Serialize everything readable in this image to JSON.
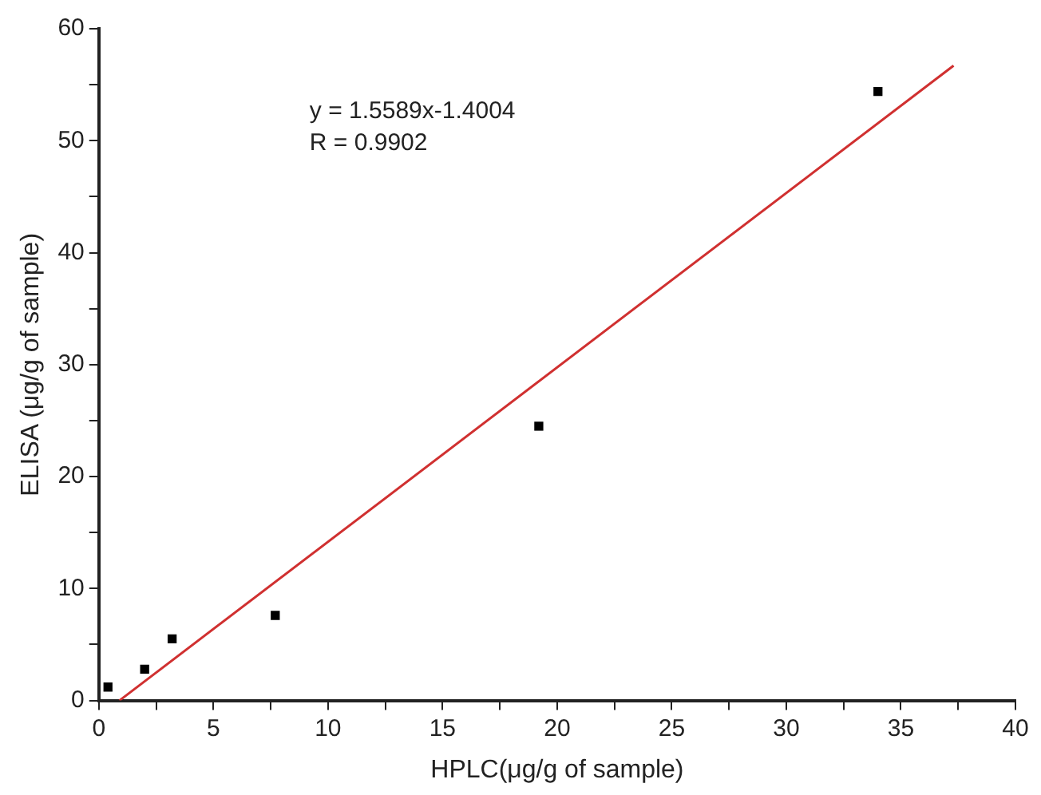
{
  "chart_data": {
    "type": "scatter",
    "xlabel": "HPLC(μg/g of sample)",
    "ylabel": "ELISA (μg/g of sample)",
    "xlim": [
      0,
      40
    ],
    "ylim": [
      0,
      60
    ],
    "xticks": [
      0,
      {
        "value": 2.5,
        "label": null
      },
      5,
      {
        "value": 7.5,
        "label": null
      },
      10,
      {
        "value": 12.5,
        "label": null
      },
      15,
      {
        "value": 17.5,
        "label": null
      },
      20,
      {
        "value": 22.5,
        "label": null
      },
      25,
      {
        "value": 27.5,
        "label": null
      },
      30,
      {
        "value": 32.5,
        "label": null
      },
      35,
      {
        "value": 37.5,
        "label": null
      },
      40
    ],
    "yticks": [
      0,
      {
        "value": 5,
        "label": null
      },
      10,
      {
        "value": 15,
        "label": null
      },
      20,
      {
        "value": 25,
        "label": null
      },
      30,
      {
        "value": 35,
        "label": null
      },
      40,
      {
        "value": 45,
        "label": null
      },
      50,
      {
        "value": 55,
        "label": null
      },
      60
    ],
    "grid": false,
    "legend": false,
    "series": [
      {
        "type": "scatter",
        "color": "#000000",
        "marker": "square",
        "x": [
          0.4,
          2.0,
          3.2,
          7.7,
          19.2,
          34.0
        ],
        "values": [
          1.2,
          2.8,
          5.5,
          7.6,
          24.5,
          54.4
        ]
      },
      {
        "type": "line",
        "color": "#d03030",
        "marker": "none",
        "line_style": "solid",
        "x": [
          0.9,
          37.3
        ],
        "values": [
          0.0,
          56.7
        ]
      }
    ],
    "annotations": [
      "y = 1.5589x-1.4004",
      "R = 0.9902"
    ]
  }
}
